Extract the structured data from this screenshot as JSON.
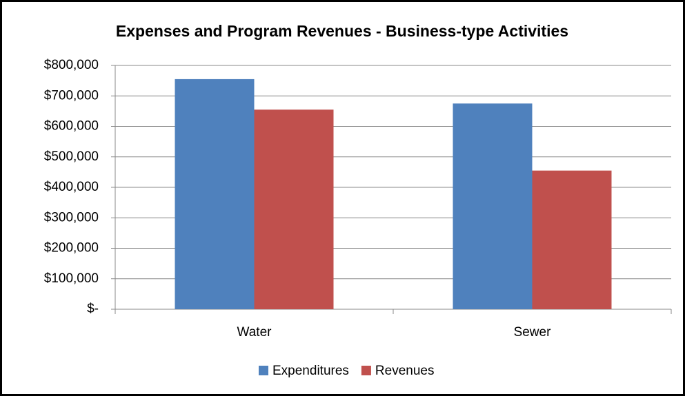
{
  "chart_data": {
    "type": "bar",
    "title": "Expenses and Program Revenues - Business-type Activities",
    "categories": [
      "Water",
      "Sewer"
    ],
    "series": [
      {
        "name": "Expenditures",
        "color": "#4f81bd",
        "values": [
          755000,
          675000
        ]
      },
      {
        "name": "Revenues",
        "color": "#c0504d",
        "values": [
          655000,
          455000
        ]
      }
    ],
    "ylim": [
      0,
      800000
    ],
    "yticks": [
      {
        "value": 0,
        "label": "$-"
      },
      {
        "value": 100000,
        "label": "$100,000"
      },
      {
        "value": 200000,
        "label": "$200,000"
      },
      {
        "value": 300000,
        "label": "$300,000"
      },
      {
        "value": 400000,
        "label": "$400,000"
      },
      {
        "value": 500000,
        "label": "$500,000"
      },
      {
        "value": 600000,
        "label": "$600,000"
      },
      {
        "value": 700000,
        "label": "$700,000"
      },
      {
        "value": 800000,
        "label": "$800,000"
      }
    ],
    "grid": true,
    "legend": "bottom"
  }
}
